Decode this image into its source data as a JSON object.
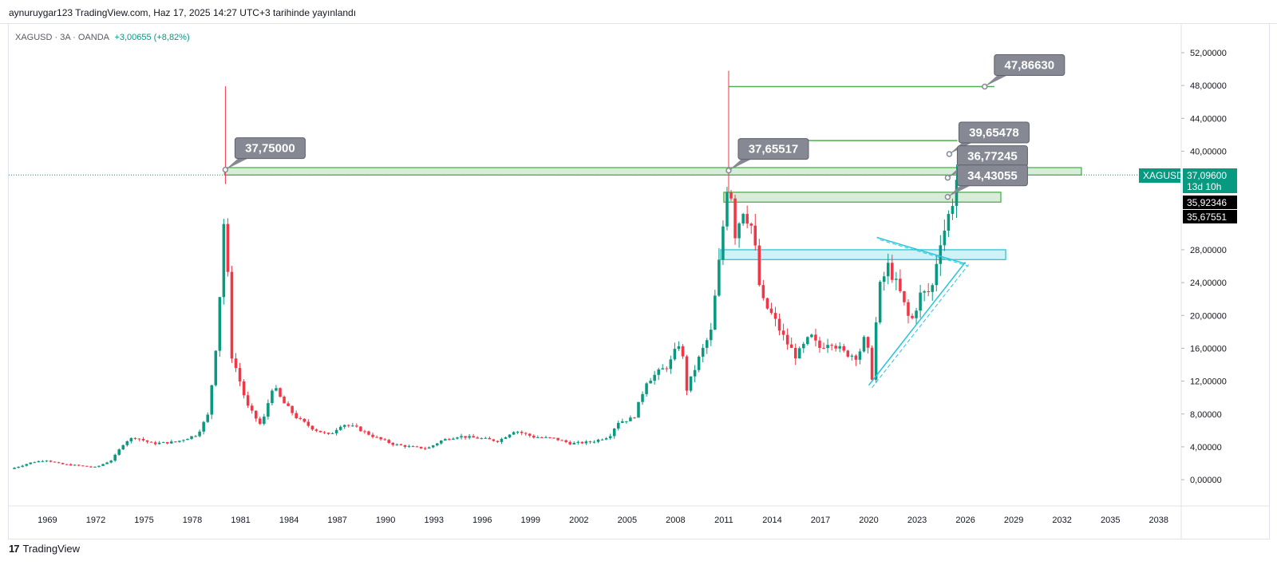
{
  "header": {
    "published": "aynuruygar123 TradingView.com, Haz 17, 2025 14:27 UTC+3 tarihinde yayınlandı"
  },
  "legend": {
    "symbol": "XAGUSD · 3A · OANDA",
    "change": "+3,00655 (+8,82%)"
  },
  "footer": {
    "brand": "TradingView",
    "brand_mark": "17"
  },
  "colors": {
    "up": "#089981",
    "down": "#f23645",
    "zone_green": "#4caf50",
    "zone_cyan": "#26c6da",
    "callout": "#868993",
    "price_tag": "#089981",
    "tag_dark": "#000000"
  },
  "price_tags": {
    "symbol": "XAGUSD",
    "last": "37,09600",
    "countdown": "13d 10h",
    "level_1": "35,92346",
    "level_2": "35,67551"
  },
  "callouts": [
    {
      "text": "37,75000",
      "value": 37.75,
      "year": 1980.05
    },
    {
      "text": "37,65517",
      "value": 37.65517,
      "year": 2011.3
    },
    {
      "text": "47,86630",
      "value": 47.8663,
      "year": 2027.2
    },
    {
      "text": "39,65478",
      "value": 39.65478,
      "year": 2025.0
    },
    {
      "text": "36,77245",
      "value": 36.77245,
      "year": 2024.9
    },
    {
      "text": "34,43055",
      "value": 34.43055,
      "year": 2024.9
    }
  ],
  "chart_data": {
    "type": "candlestick",
    "symbol": "XAGUSD",
    "interval": "3M",
    "source": "OANDA",
    "y_axis": {
      "ticks": [
        0,
        4,
        8,
        12,
        16,
        20,
        24,
        28,
        40,
        44,
        48,
        52
      ],
      "tick_labels": [
        "0,00000",
        "4,00000",
        "8,00000",
        "12,00000",
        "16,00000",
        "20,00000",
        "24,00000",
        "28,00000",
        "40,00000",
        "44,00000",
        "48,00000",
        "52,00000"
      ],
      "range": [
        -3.2,
        55.4
      ]
    },
    "x_axis": {
      "ticks": [
        1969,
        1972,
        1975,
        1978,
        1981,
        1984,
        1987,
        1990,
        1993,
        1996,
        1999,
        2002,
        2005,
        2008,
        2011,
        2014,
        2017,
        2020,
        2023,
        2026,
        2029,
        2032,
        2035,
        2038
      ],
      "range": [
        1966.6,
        2039.4
      ]
    },
    "price_path": [
      [
        1966.7,
        1.3
      ],
      [
        1968.0,
        2.1
      ],
      [
        1968.9,
        2.4
      ],
      [
        1969.8,
        1.9
      ],
      [
        1971.0,
        1.7
      ],
      [
        1972.0,
        1.5
      ],
      [
        1973.0,
        2.4
      ],
      [
        1973.8,
        4.6
      ],
      [
        1974.4,
        5.2
      ],
      [
        1975.5,
        4.4
      ],
      [
        1977.0,
        4.6
      ],
      [
        1978.3,
        5.5
      ],
      [
        1979.0,
        8.0
      ],
      [
        1979.5,
        17.0
      ],
      [
        1979.9,
        28.0
      ],
      [
        1980.05,
        37.75
      ],
      [
        1980.3,
        16.0
      ],
      [
        1980.8,
        13.0
      ],
      [
        1981.4,
        9.0
      ],
      [
        1982.3,
        6.5
      ],
      [
        1983.0,
        11.5
      ],
      [
        1983.6,
        9.5
      ],
      [
        1984.5,
        7.5
      ],
      [
        1985.5,
        6.2
      ],
      [
        1986.5,
        5.4
      ],
      [
        1987.3,
        6.8
      ],
      [
        1988.2,
        6.3
      ],
      [
        1989.3,
        5.2
      ],
      [
        1990.5,
        4.3
      ],
      [
        1991.5,
        4.0
      ],
      [
        1992.6,
        3.8
      ],
      [
        1993.5,
        4.8
      ],
      [
        1994.5,
        5.3
      ],
      [
        1996.0,
        5.0
      ],
      [
        1997.0,
        4.7
      ],
      [
        1998.0,
        6.0
      ],
      [
        1999.2,
        5.2
      ],
      [
        2000.5,
        5.0
      ],
      [
        2001.5,
        4.4
      ],
      [
        2002.8,
        4.6
      ],
      [
        2003.9,
        5.3
      ],
      [
        2004.4,
        7.0
      ],
      [
        2005.4,
        7.5
      ],
      [
        2006.2,
        12.0
      ],
      [
        2006.9,
        13.0
      ],
      [
        2007.6,
        14.0
      ],
      [
        2008.3,
        17.0
      ],
      [
        2008.7,
        11.0
      ],
      [
        2009.5,
        15.0
      ],
      [
        2010.2,
        18.0
      ],
      [
        2010.8,
        28.0
      ],
      [
        2011.3,
        37.65
      ],
      [
        2011.7,
        30.0
      ],
      [
        2012.2,
        33.0
      ],
      [
        2012.8,
        30.5
      ],
      [
        2013.3,
        22.0
      ],
      [
        2014.0,
        20.0
      ],
      [
        2014.8,
        17.0
      ],
      [
        2015.5,
        15.0
      ],
      [
        2016.4,
        17.5
      ],
      [
        2016.9,
        16.0
      ],
      [
        2017.6,
        17.0
      ],
      [
        2018.4,
        15.5
      ],
      [
        2019.3,
        15.0
      ],
      [
        2019.8,
        17.5
      ],
      [
        2020.2,
        12.5
      ],
      [
        2020.6,
        23.0
      ],
      [
        2021.2,
        26.0
      ],
      [
        2021.9,
        23.0
      ],
      [
        2022.6,
        19.0
      ],
      [
        2023.2,
        22.5
      ],
      [
        2023.9,
        23.0
      ],
      [
        2024.4,
        29.0
      ],
      [
        2024.8,
        31.0
      ],
      [
        2025.2,
        34.0
      ],
      [
        2025.5,
        37.1
      ]
    ],
    "horizontal_zones": [
      {
        "color": "green",
        "from_year": 1980.0,
        "to_year": 2033.2,
        "low": 37.1,
        "high": 38.0
      },
      {
        "color": "green",
        "from_year": 2011.0,
        "to_year": 2028.2,
        "low": 33.8,
        "high": 35.0
      },
      {
        "color": "cyan",
        "from_year": 2010.8,
        "to_year": 2028.5,
        "low": 26.8,
        "high": 28.0
      }
    ],
    "horizontal_lines": [
      {
        "color": "green",
        "from_year": 2011.3,
        "to_year": 2027.8,
        "value": 47.8663
      },
      {
        "color": "green",
        "from_year": 2012.8,
        "to_year": 2025.5,
        "value": 41.3
      }
    ],
    "trendlines": [
      {
        "color": "cyan",
        "from": [
          2020.0,
          11.5
        ],
        "to": [
          2026.0,
          26.5
        ]
      },
      {
        "color": "cyan",
        "from": [
          2020.5,
          29.5
        ],
        "to": [
          2026.0,
          26.3
        ]
      }
    ]
  }
}
